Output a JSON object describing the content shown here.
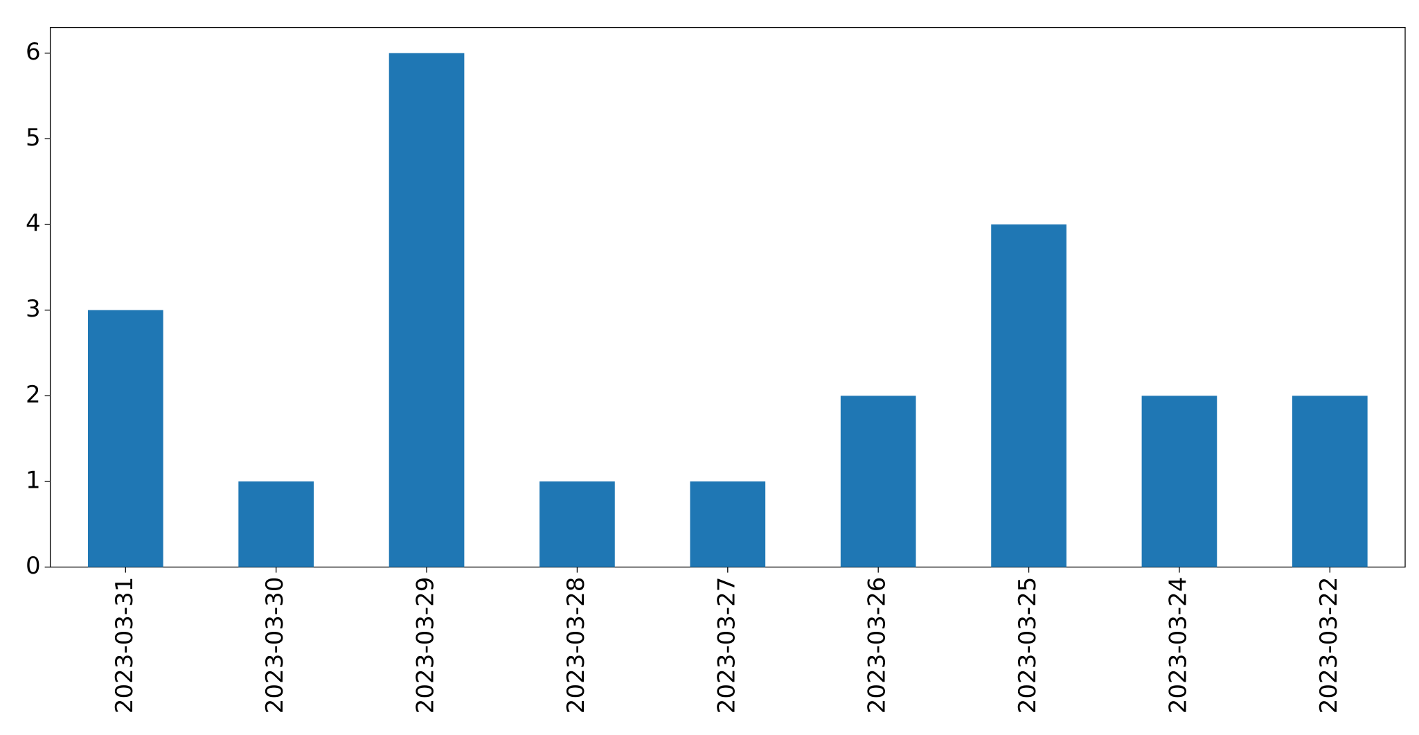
{
  "chart_data": {
    "type": "bar",
    "categories": [
      "2023-03-31",
      "2023-03-30",
      "2023-03-29",
      "2023-03-28",
      "2023-03-27",
      "2023-03-26",
      "2023-03-25",
      "2023-03-24",
      "2023-03-22"
    ],
    "values": [
      3,
      1,
      6,
      1,
      1,
      2,
      4,
      2,
      2
    ],
    "color": "#1f77b4",
    "ylim": [
      0,
      6.3
    ],
    "yticks": [
      0,
      1,
      2,
      3,
      4,
      5,
      6
    ],
    "grid": false
  }
}
